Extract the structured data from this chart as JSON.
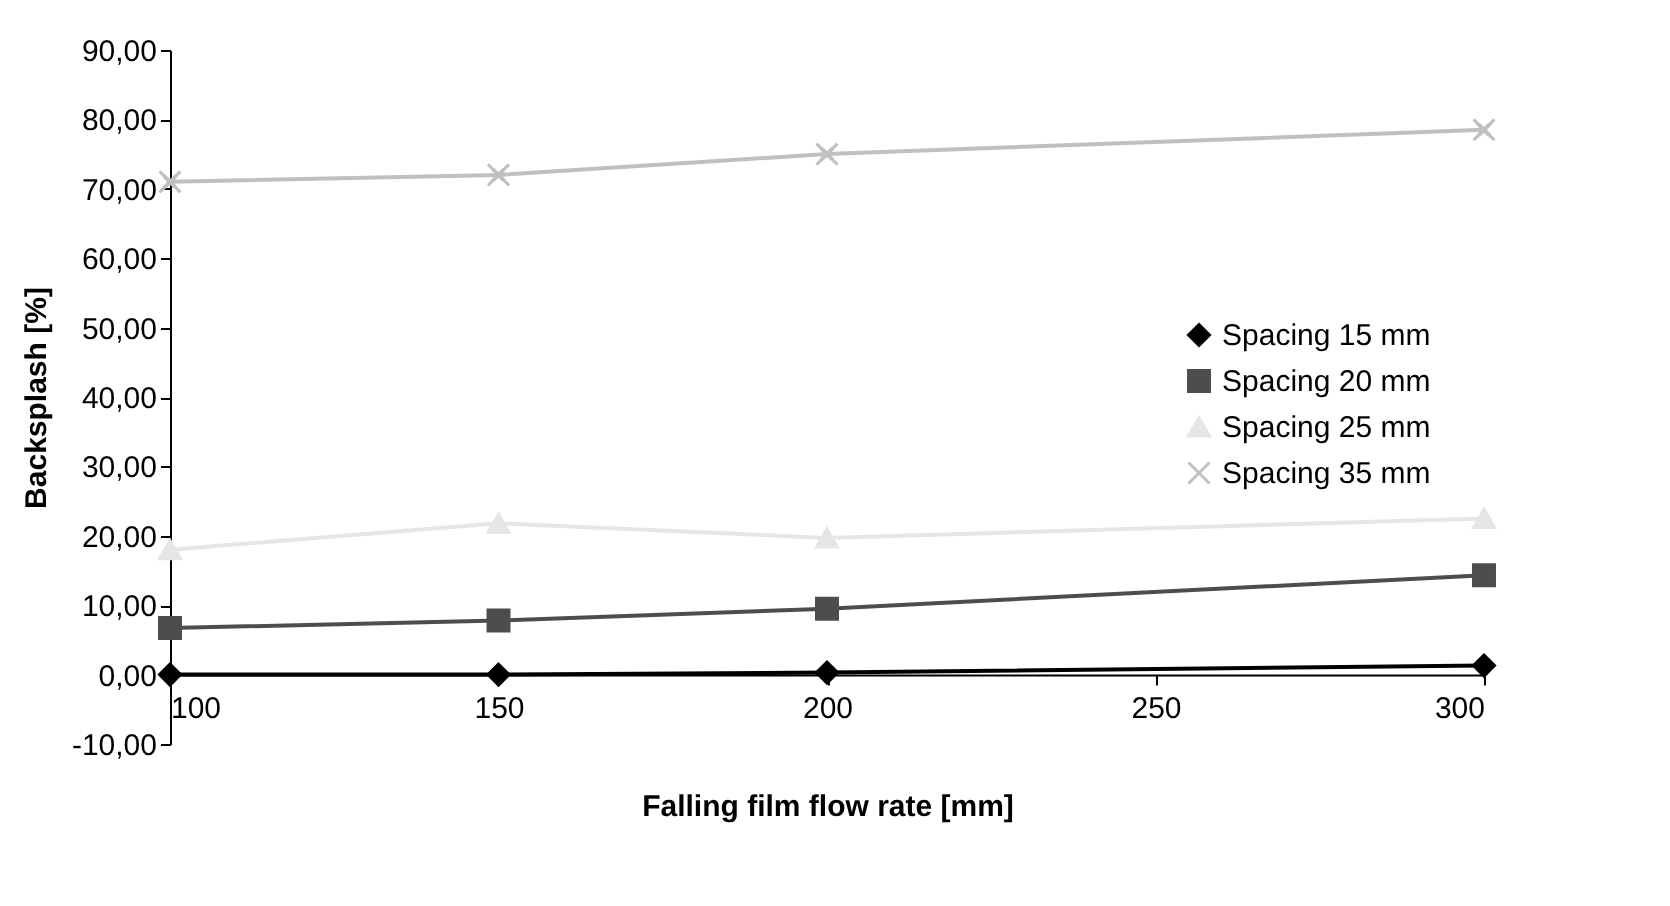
{
  "chart_data": {
    "type": "line",
    "xlabel": "Falling film flow rate [mm]",
    "ylabel": "Backsplash [%]",
    "x": [
      100,
      150,
      200,
      300
    ],
    "series": [
      {
        "name": "Spacing 15 mm",
        "color": "#000000",
        "marker": "diamond",
        "values": [
          0,
          0,
          0.3,
          1.3
        ]
      },
      {
        "name": "Spacing 20 mm",
        "color": "#4d4d4d",
        "marker": "square",
        "values": [
          6.7,
          7.8,
          9.5,
          14.3
        ]
      },
      {
        "name": "Spacing 25 mm",
        "color": "#e6e6e6",
        "marker": "triangle",
        "values": [
          18,
          21.8,
          19.7,
          22.5
        ]
      },
      {
        "name": "Spacing 35 mm",
        "color": "#c0c0c0",
        "marker": "cross",
        "values": [
          71,
          72,
          75,
          78.5
        ]
      }
    ],
    "xlim": [
      100,
      300
    ],
    "xticks": [
      100,
      150,
      200,
      250,
      300
    ],
    "ylim": [
      -10,
      90
    ],
    "yticks": [
      {
        "value": -10,
        "label": "-10,00"
      },
      {
        "value": 0,
        "label": "0,00"
      },
      {
        "value": 10,
        "label": "10,00"
      },
      {
        "value": 20,
        "label": "20,00"
      },
      {
        "value": 30,
        "label": "30,00"
      },
      {
        "value": 40,
        "label": "40,00"
      },
      {
        "value": 50,
        "label": "50,00"
      },
      {
        "value": 60,
        "label": "60,00"
      },
      {
        "value": 70,
        "label": "70,00"
      },
      {
        "value": 80,
        "label": "80,00"
      },
      {
        "value": 90,
        "label": "90,00"
      }
    ],
    "grid": false,
    "legend": "right"
  }
}
